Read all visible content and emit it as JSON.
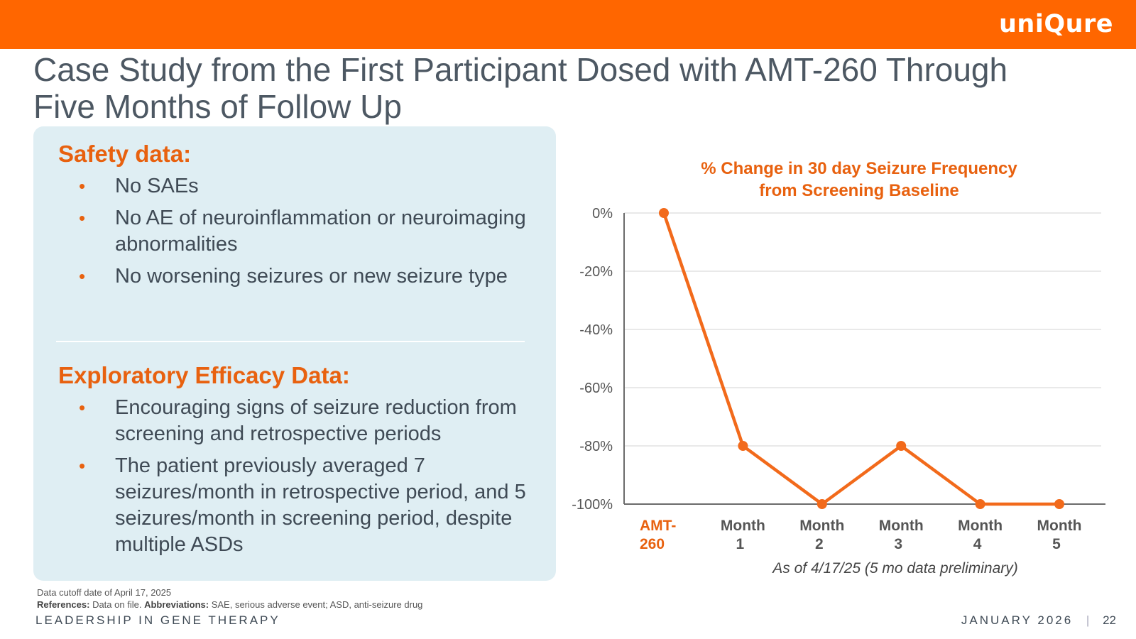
{
  "brand": {
    "logo_text": "uniQure",
    "accent_color": "#ff6600"
  },
  "slide": {
    "title_line1": "Case Study from the First Participant Dosed with AMT-260 Through",
    "title_line2": "Five Months of Follow Up"
  },
  "safety": {
    "heading": "Safety data:",
    "items": [
      "No SAEs",
      "No AE of neuroinflammation or neuroimaging abnormalities",
      "No worsening seizures or new seizure type"
    ]
  },
  "efficacy": {
    "heading": "Exploratory Efficacy Data:",
    "items": [
      "Encouraging signs of seizure reduction from screening and retrospective periods",
      "The patient previously averaged 7 seizures/month in retrospective period, and 5 seizures/month in screening period, despite multiple ASDs"
    ]
  },
  "chart_data": {
    "type": "line",
    "title_line1": "% Change in 30 day Seizure Frequency",
    "title_line2": "from Screening Baseline",
    "categories": [
      [
        "AMT-",
        "260"
      ],
      [
        "Month",
        "1"
      ],
      [
        "Month",
        "2"
      ],
      [
        "Month",
        "3"
      ],
      [
        "Month",
        "4"
      ],
      [
        "Month",
        "5"
      ]
    ],
    "series": [
      {
        "values": [
          0,
          -80,
          -100,
          -80,
          -100,
          -100
        ],
        "color": "#f26a1b"
      }
    ],
    "yticks": [
      "0%",
      "-20%",
      "-40%",
      "-60%",
      "-80%",
      "-100%"
    ],
    "ytick_values": [
      0,
      -20,
      -40,
      -60,
      -80,
      -100
    ],
    "ylim": [
      -100,
      0
    ],
    "grid": true,
    "xlabel": "As of 4/17/25 (5 mo data preliminary)",
    "ylabel": ""
  },
  "footnotes": {
    "cutoff": "Data cutoff date of April 17, 2025",
    "ref_label": "References:",
    "ref_text": "Data on file.",
    "abbr_label": "Abbreviations:",
    "abbr_text": "SAE, serious adverse event; ASD, anti-seizure drug"
  },
  "footer": {
    "tagline": "LEADERSHIP IN GENE THERAPY",
    "date": "JANUARY 2026",
    "separator": "|",
    "page_number": "22"
  }
}
